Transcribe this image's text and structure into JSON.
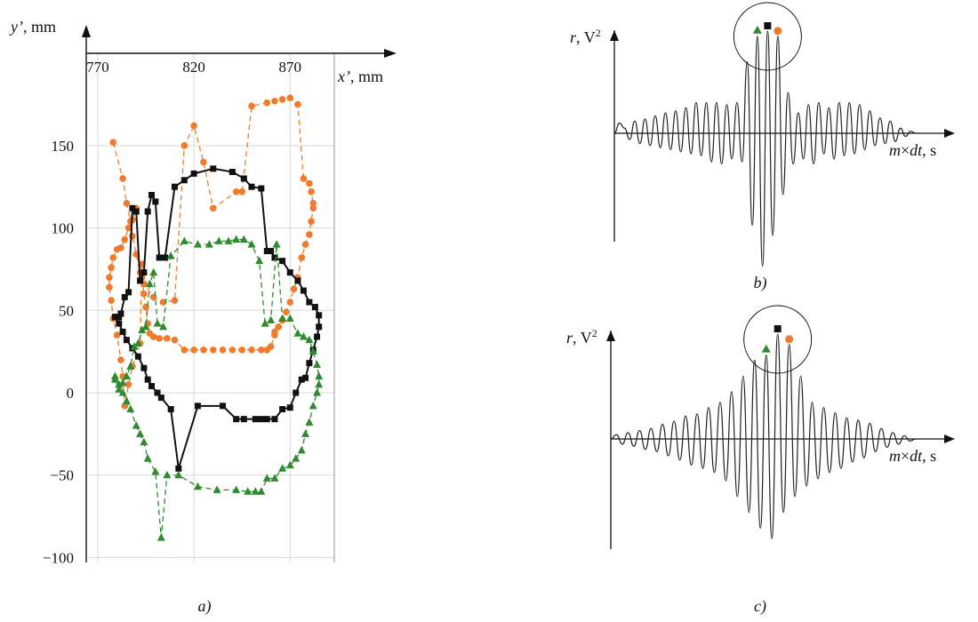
{
  "chart_data": [
    {
      "type": "scatter",
      "panel": "a",
      "caption": "a)",
      "xlabel_var": "x’",
      "xlabel_unit": ", mm",
      "ylabel_var": "y’",
      "ylabel_unit": ", mm",
      "x_ticks": [
        770,
        820,
        870
      ],
      "y_ticks": [
        150,
        100,
        50,
        0,
        -50,
        -100
      ],
      "xlim": [
        764,
        893
      ],
      "ylim": [
        -103,
        206
      ],
      "grid": true,
      "colors": {
        "black": "#111111",
        "orange": "#f07b2a",
        "green": "#2e8b2e"
      },
      "series": [
        {
          "color": "orange",
          "marker": "circle",
          "style": "dashed",
          "x": [
            778,
            783,
            785,
            787,
            788,
            790,
            792,
            794,
            799,
            804,
            810,
            815,
            820,
            825,
            830,
            842,
            845,
            850,
            858,
            862,
            866,
            870,
            874,
            877,
            880,
            881,
            882,
            882,
            881,
            880,
            878,
            876,
            874,
            872,
            870,
            868,
            866,
            864,
            862,
            862,
            860,
            858,
            855,
            850,
            845,
            840,
            835,
            830,
            825,
            820,
            815,
            810,
            806,
            802,
            799,
            797,
            796,
            795,
            794,
            793,
            793,
            792,
            788,
            786,
            784,
            783,
            782,
            780,
            778,
            777,
            776,
            776,
            777,
            778,
            780,
            782,
            784,
            786,
            788,
            790
          ],
          "y": [
            152,
            130,
            115,
            104,
            95,
            84,
            73,
            66,
            58,
            55,
            56,
            150,
            162,
            140,
            112,
            122,
            122,
            174,
            176,
            177,
            178,
            179,
            175,
            130,
            127,
            122,
            115,
            112,
            104,
            96,
            90,
            82,
            70,
            63,
            55,
            49,
            44,
            40,
            37,
            35,
            28,
            26,
            26,
            26,
            26,
            26,
            26,
            26,
            26,
            26,
            26,
            32,
            33,
            33,
            34,
            36,
            42,
            52,
            60,
            70,
            78,
            30,
            16,
            5,
            -8,
            10,
            20,
            35,
            45,
            56,
            64,
            70,
            76,
            82,
            87,
            88,
            93,
            100,
            105,
            112
          ]
        },
        {
          "color": "black",
          "marker": "square",
          "style": "solid",
          "x": [
            779,
            781,
            783,
            785,
            788,
            791,
            794,
            796,
            798,
            801,
            803,
            808,
            812,
            822,
            835,
            842,
            846,
            852,
            855,
            858,
            862,
            866,
            870,
            873,
            876,
            878,
            880,
            882,
            884,
            885,
            885,
            883,
            880,
            877,
            874,
            870,
            866,
            862,
            860,
            858,
            855,
            850,
            846,
            840,
            830,
            820,
            815,
            810,
            805,
            802,
            800,
            798,
            796,
            794,
            792,
            790,
            788,
            786,
            784,
            782,
            781,
            780,
            779
          ],
          "y": [
            46,
            42,
            37,
            32,
            27,
            22,
            15,
            8,
            4,
            0,
            -3,
            -10,
            -46,
            -8,
            -8,
            -16,
            -16,
            -16,
            -16,
            -16,
            -16,
            -10,
            -9,
            0,
            8,
            9,
            18,
            26,
            34,
            40,
            47,
            52,
            55,
            62,
            68,
            73,
            80,
            82,
            86,
            86,
            124,
            125,
            130,
            134,
            136,
            133,
            129,
            125,
            82,
            82,
            116,
            120,
            110,
            73,
            68,
            110,
            112,
            61,
            58,
            48,
            46,
            46,
            46
          ]
        },
        {
          "color": "green",
          "marker": "triangle",
          "style": "dashed",
          "x": [
            779,
            781,
            783,
            785,
            787,
            790,
            792,
            794,
            796,
            800,
            803,
            806,
            812,
            822,
            832,
            842,
            848,
            852,
            855,
            858,
            862,
            866,
            870,
            873,
            876,
            878,
            880,
            882,
            884,
            885,
            885,
            884,
            882,
            880,
            877,
            874,
            870,
            866,
            863,
            860,
            857,
            854,
            850,
            846,
            842,
            838,
            833,
            828,
            822,
            815,
            808,
            804,
            801,
            799,
            797,
            795,
            793,
            791,
            789,
            787,
            785,
            783,
            781,
            779
          ],
          "y": [
            10,
            5,
            0,
            -5,
            -10,
            -20,
            -25,
            -30,
            -40,
            -48,
            -88,
            -50,
            -50,
            -57,
            -59,
            -59,
            -60,
            -60,
            -60,
            -52,
            -52,
            -46,
            -44,
            -40,
            -35,
            -25,
            -18,
            -8,
            0,
            5,
            10,
            17,
            25,
            32,
            34,
            36,
            45,
            45,
            90,
            44,
            42,
            80,
            90,
            93,
            93,
            92,
            92,
            90,
            90,
            92,
            83,
            40,
            42,
            73,
            66,
            40,
            38,
            30,
            28,
            16,
            10,
            6,
            2,
            8
          ]
        }
      ]
    },
    {
      "type": "line",
      "panel": "b",
      "caption": "b)",
      "ylabel_var": "r",
      "ylabel_unit": ", V",
      "ylabel_sup": "2",
      "xlabel_var": "m",
      "xlabel_mid": "×",
      "xlabel_var2": "dt",
      "xlabel_unit": ", s",
      "markers": [
        "green-triangle",
        "black-square",
        "orange-circle"
      ],
      "values": [
        0,
        0.1,
        0.05,
        -0.06,
        0.12,
        -0.1,
        0.14,
        -0.12,
        0.17,
        -0.14,
        0.2,
        -0.16,
        0.22,
        -0.18,
        0.25,
        -0.2,
        0.3,
        -0.22,
        0.3,
        -0.28,
        0.3,
        -0.3,
        0.28,
        -0.25,
        0.3,
        -0.28,
        0.7,
        -0.9,
        0.95,
        -1.3,
        1.0,
        -1.0,
        0.95,
        -0.6,
        0.4,
        -0.3,
        0.2,
        -0.25,
        0.28,
        -0.3,
        0.3,
        -0.2,
        0.25,
        -0.25,
        0.3,
        -0.22,
        0.3,
        -0.2,
        0.28,
        -0.16,
        0.22,
        -0.12,
        0.15,
        -0.1,
        0.12,
        -0.08,
        0.05,
        -0.03,
        0.02,
        0
      ]
    },
    {
      "type": "line",
      "panel": "c",
      "caption": "c)",
      "ylabel_var": "r",
      "ylabel_unit": ", V",
      "ylabel_sup": "2",
      "xlabel_var": "m",
      "xlabel_mid": "×",
      "xlabel_var2": "dt",
      "xlabel_unit": ", s",
      "markers": [
        "green-triangle",
        "black-square",
        "orange-circle"
      ],
      "values": [
        0,
        0.04,
        -0.05,
        0.06,
        -0.07,
        0.08,
        -0.1,
        0.1,
        -0.12,
        0.14,
        -0.16,
        0.17,
        -0.2,
        0.22,
        -0.25,
        0.24,
        -0.28,
        0.3,
        -0.32,
        0.35,
        -0.4,
        0.45,
        -0.55,
        0.6,
        -0.7,
        0.75,
        -0.85,
        0.8,
        -0.95,
        1.0,
        -0.7,
        0.9,
        -0.55,
        0.6,
        -0.45,
        0.35,
        -0.38,
        0.3,
        -0.32,
        0.25,
        -0.28,
        0.2,
        -0.22,
        0.18,
        -0.18,
        0.15,
        -0.12,
        0.1,
        -0.08,
        0.06,
        -0.05,
        0.03,
        -0.02,
        0
      ]
    }
  ]
}
